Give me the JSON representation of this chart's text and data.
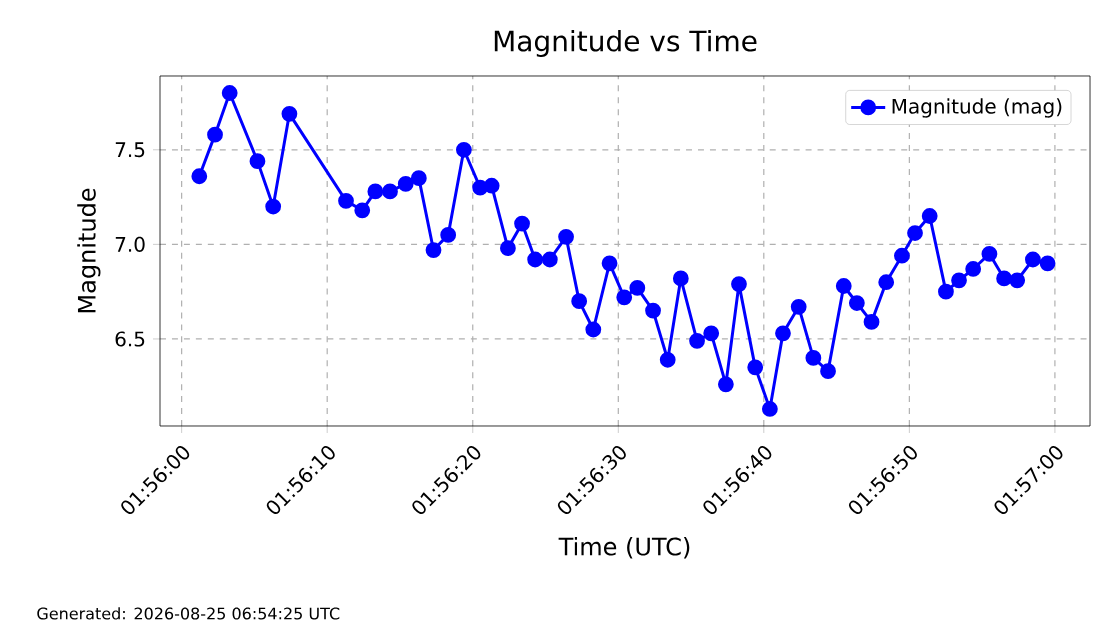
{
  "chart_data": {
    "type": "line",
    "title": "Magnitude vs Time",
    "xlabel": "Time (UTC)",
    "ylabel": "Magnitude",
    "annotations": [
      "Generated: 2026-08-25 06:54:25 UTC"
    ],
    "x": [
      1.93367,
      1.93397,
      1.93425,
      1.93478,
      1.93508,
      1.93539,
      1.93647,
      1.93678,
      1.93703,
      1.93731,
      1.93761,
      1.93786,
      1.93814,
      1.93842,
      1.93872,
      1.93903,
      1.93925,
      1.93956,
      1.93983,
      1.94008,
      1.94036,
      1.94067,
      1.94092,
      1.94119,
      1.9415,
      1.94178,
      1.94203,
      1.94233,
      1.94261,
      1.94286,
      1.94317,
      1.94344,
      1.94372,
      1.94397,
      1.94428,
      1.94456,
      1.94481,
      1.94511,
      1.94539,
      1.94567,
      1.94597,
      1.94622,
      1.9465,
      1.94678,
      1.94708,
      1.94733,
      1.94761,
      1.94792,
      1.94817,
      1.94844,
      1.94875,
      1.94903,
      1.94928,
      1.94958,
      1.94986
    ],
    "series": [
      {
        "name": "Magnitude (mag)",
        "color": "#0000ff",
        "values": [
          7.36,
          7.58,
          7.8,
          7.44,
          7.2,
          7.69,
          7.23,
          7.18,
          7.28,
          7.28,
          7.32,
          7.35,
          6.97,
          7.05,
          7.5,
          7.3,
          7.31,
          6.98,
          7.11,
          6.92,
          6.92,
          7.04,
          6.7,
          6.55,
          6.9,
          6.72,
          6.77,
          6.65,
          6.39,
          6.82,
          6.49,
          6.53,
          6.26,
          6.79,
          6.35,
          6.13,
          6.53,
          6.67,
          6.4,
          6.33,
          6.78,
          6.69,
          6.59,
          6.8,
          6.94,
          7.06,
          7.15,
          6.75,
          6.81,
          6.87,
          6.95,
          6.82,
          6.81,
          6.92,
          6.9
        ]
      }
    ],
    "xlim": [
      1.93292,
      1.95067
    ],
    "xticks": [
      {
        "value": 1.933333,
        "label": "01:56:00"
      },
      {
        "value": 1.936111,
        "label": "01:56:10"
      },
      {
        "value": 1.938889,
        "label": "01:56:20"
      },
      {
        "value": 1.941667,
        "label": "01:56:30"
      },
      {
        "value": 1.944444,
        "label": "01:56:40"
      },
      {
        "value": 1.947222,
        "label": "01:56:50"
      },
      {
        "value": 1.95,
        "label": "01:57:00"
      }
    ],
    "ylim": [
      6.04,
      7.89
    ],
    "yticks": [
      {
        "value": 6.5,
        "label": "6.5"
      },
      {
        "value": 7,
        "label": "7.0"
      },
      {
        "value": 7.5,
        "label": "7.5"
      }
    ],
    "grid": true,
    "legend": "top right",
    "marker": "circle",
    "line_style": "solid"
  }
}
